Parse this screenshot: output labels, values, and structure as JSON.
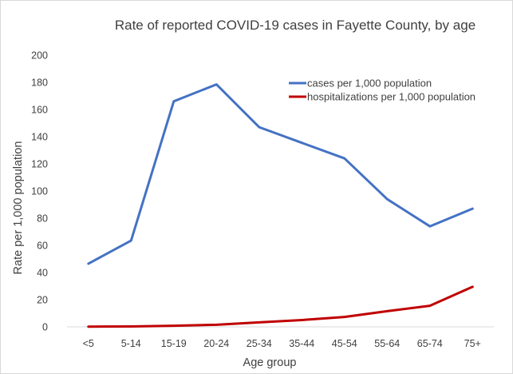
{
  "chart_data": {
    "type": "line",
    "title": "Rate of reported COVID-19 cases in Fayette County, by age",
    "xlabel": "Age group",
    "ylabel": "Rate per 1,000 population",
    "categories": [
      "<5",
      "5-14",
      "15-19",
      "20-24",
      "25-34",
      "35-44",
      "45-54",
      "55-64",
      "65-74",
      "75+"
    ],
    "ylim": [
      0,
      200
    ],
    "yticks": [
      "0",
      "20",
      "40",
      "60",
      "80",
      "100",
      "120",
      "140",
      "160",
      "180",
      "200"
    ],
    "grid": false,
    "legend_position": "top-right",
    "series": [
      {
        "name": "cases per 1,000 population",
        "color": "#4472c4",
        "values": [
          46.5,
          63.5,
          166,
          178.5,
          147,
          135.5,
          124,
          94,
          74,
          87
        ]
      },
      {
        "name": "hospitalizations per 1,000 population",
        "color": "#c00000",
        "values": [
          0.2,
          0.3,
          0.8,
          1.5,
          3.3,
          5,
          7.3,
          11.5,
          15.5,
          29.5
        ]
      }
    ]
  }
}
